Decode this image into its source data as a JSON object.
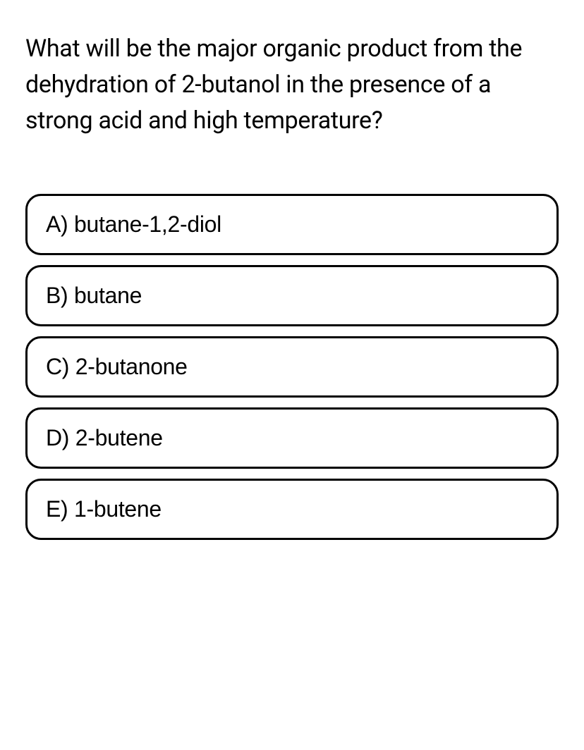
{
  "question": {
    "text": "What will be the major organic product from the dehydration of 2-butanol in the presence of a strong acid and high temperature?"
  },
  "options": [
    {
      "label": "A) butane-1,2-diol"
    },
    {
      "label": "B) butane"
    },
    {
      "label": "C) 2-butanone"
    },
    {
      "label": "D) 2-butene"
    },
    {
      "label": "E) 1-butene"
    }
  ],
  "styling": {
    "background_color": "#ffffff",
    "text_color": "#000000",
    "border_color": "#000000",
    "question_fontsize": 34,
    "option_fontsize": 32,
    "border_width": 3,
    "border_radius": 22,
    "option_gap": 14
  }
}
